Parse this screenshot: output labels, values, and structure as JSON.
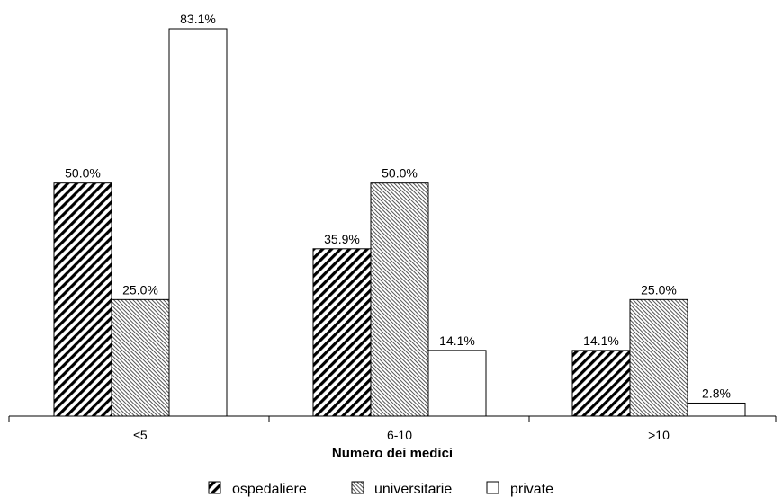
{
  "chart_data": {
    "type": "bar",
    "categories": [
      "≤5",
      "6-10",
      ">10"
    ],
    "series": [
      {
        "name": "ospedaliere",
        "values": [
          50.0,
          35.9,
          14.1
        ],
        "pattern": "dense-diagonal"
      },
      {
        "name": "universitarie",
        "values": [
          25.0,
          50.0,
          25.0
        ],
        "pattern": "fine-diagonal"
      },
      {
        "name": "private",
        "values": [
          83.1,
          14.1,
          2.8
        ],
        "pattern": "none"
      }
    ],
    "value_labels": [
      [
        "50.0%",
        "35.9%",
        "14.1%"
      ],
      [
        "25.0%",
        "50.0%",
        "25.0%"
      ],
      [
        "83.1%",
        "14.1%",
        "2.8%"
      ]
    ],
    "title": "",
    "xlabel": "Numero dei medici",
    "ylabel": "",
    "ylim": [
      0,
      85
    ],
    "grid": false,
    "legend": "bottom",
    "colors": {
      "stroke": "#000000",
      "fill_solid": "#ffffff"
    }
  }
}
